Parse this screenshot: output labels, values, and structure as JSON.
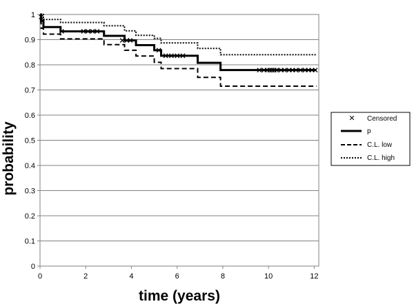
{
  "chart_data": {
    "type": "line",
    "title": "",
    "xlabel": "time (years)",
    "ylabel": "probability",
    "xlim": [
      0,
      12.2
    ],
    "ylim": [
      0,
      1
    ],
    "x_ticks": [
      0,
      2,
      4,
      6,
      8,
      10,
      12
    ],
    "y_ticks": [
      0,
      0.1,
      0.2,
      0.3,
      0.4,
      0.5,
      0.6,
      0.7,
      0.8,
      0.9,
      1
    ],
    "y_tick_labels": [
      "0",
      "0.1",
      "0.2",
      "0.3",
      "0.4",
      "0.5",
      "0.6",
      "0.7",
      "0.8",
      "0.9",
      "1"
    ],
    "grid": "horizontal",
    "legend_position": "right",
    "legend": [
      {
        "label": "Censored",
        "style": "marker-x"
      },
      {
        "label": "p",
        "style": "solid"
      },
      {
        "label": "C.L. low",
        "style": "dashed"
      },
      {
        "label": "C.L. high",
        "style": "dotted"
      }
    ],
    "series": [
      {
        "name": "p",
        "style": "solid",
        "step": true,
        "points": [
          [
            0,
            1.0
          ],
          [
            0.05,
            0.975
          ],
          [
            0.15,
            0.95
          ],
          [
            0.9,
            0.933
          ],
          [
            2.8,
            0.915
          ],
          [
            3.7,
            0.897
          ],
          [
            4.2,
            0.878
          ],
          [
            5.0,
            0.858
          ],
          [
            5.3,
            0.836
          ],
          [
            6.9,
            0.808
          ],
          [
            7.9,
            0.779
          ],
          [
            12.1,
            0.779
          ]
        ]
      },
      {
        "name": "C.L. low",
        "style": "dashed",
        "step": true,
        "points": [
          [
            0,
            0.975
          ],
          [
            0.05,
            0.945
          ],
          [
            0.15,
            0.922
          ],
          [
            0.9,
            0.903
          ],
          [
            2.8,
            0.88
          ],
          [
            3.7,
            0.858
          ],
          [
            4.2,
            0.835
          ],
          [
            5.0,
            0.81
          ],
          [
            5.3,
            0.785
          ],
          [
            6.9,
            0.75
          ],
          [
            7.9,
            0.715
          ],
          [
            12.1,
            0.715
          ]
        ]
      },
      {
        "name": "C.L. high",
        "style": "dotted",
        "step": true,
        "points": [
          [
            0,
            1.0
          ],
          [
            0.15,
            0.98
          ],
          [
            0.9,
            0.968
          ],
          [
            2.8,
            0.955
          ],
          [
            3.7,
            0.935
          ],
          [
            4.2,
            0.917
          ],
          [
            5.0,
            0.905
          ],
          [
            5.3,
            0.887
          ],
          [
            6.9,
            0.865
          ],
          [
            7.9,
            0.84
          ],
          [
            12.1,
            0.84
          ]
        ]
      }
    ],
    "censored": [
      [
        0.05,
        0.99
      ],
      [
        0.1,
        0.975
      ],
      [
        0.95,
        0.933
      ],
      [
        1.9,
        0.933
      ],
      [
        2.1,
        0.933
      ],
      [
        2.3,
        0.933
      ],
      [
        2.5,
        0.933
      ],
      [
        3.6,
        0.897
      ],
      [
        3.8,
        0.897
      ],
      [
        3.95,
        0.897
      ],
      [
        5.2,
        0.858
      ],
      [
        5.5,
        0.836
      ],
      [
        5.75,
        0.836
      ],
      [
        6.0,
        0.836
      ],
      [
        6.25,
        0.836
      ],
      [
        9.6,
        0.779
      ],
      [
        9.8,
        0.779
      ],
      [
        9.95,
        0.779
      ],
      [
        10.05,
        0.779
      ],
      [
        10.15,
        0.779
      ],
      [
        10.25,
        0.779
      ],
      [
        10.35,
        0.779
      ],
      [
        10.55,
        0.779
      ],
      [
        10.7,
        0.779
      ],
      [
        10.9,
        0.779
      ],
      [
        11.05,
        0.779
      ],
      [
        11.2,
        0.779
      ],
      [
        11.4,
        0.779
      ],
      [
        11.6,
        0.779
      ],
      [
        11.75,
        0.779
      ],
      [
        11.9,
        0.779
      ],
      [
        12.05,
        0.779
      ]
    ]
  }
}
